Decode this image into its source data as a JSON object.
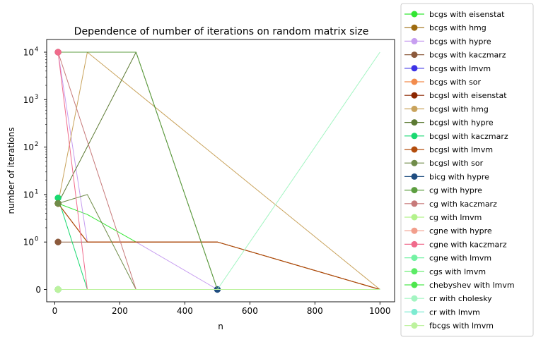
{
  "chart_data": {
    "type": "line",
    "title": "Dependence of number of iterations on random matrix size",
    "xlabel": "n",
    "ylabel": "number of iterations",
    "x_scale": "linear",
    "y_scale": "symlog",
    "xlim": [
      -25,
      1045
    ],
    "x_ticks": [
      0,
      200,
      400,
      600,
      800,
      1000
    ],
    "x_tick_labels": [
      "0",
      "200",
      "400",
      "600",
      "800",
      "1000"
    ],
    "y_ticks": [
      0,
      1,
      10,
      100,
      1000,
      10000
    ],
    "y_tick_labels": [
      "0",
      "10^0",
      "10^1",
      "10^2",
      "10^3",
      "10^4"
    ],
    "grid": false,
    "legend_position": "outside-right",
    "series": [
      {
        "name": "bcgs with eisenstat",
        "color": "#33e633",
        "points": [
          [
            10,
            6.5
          ],
          [
            100,
            3.8
          ],
          [
            250,
            1
          ],
          [
            500,
            1
          ],
          [
            1000,
            0
          ]
        ]
      },
      {
        "name": "bcgs with hmg",
        "color": "#9e6b0f",
        "points": [
          [
            10,
            6.5
          ],
          [
            100,
            1
          ],
          [
            250,
            1
          ],
          [
            500,
            1
          ],
          [
            1000,
            0
          ]
        ]
      },
      {
        "name": "bcgs with hypre",
        "color": "#c79ef0",
        "points": [
          [
            10,
            10000
          ],
          [
            100,
            1
          ],
          [
            250,
            1
          ],
          [
            500,
            0
          ],
          [
            1000,
            0
          ]
        ]
      },
      {
        "name": "bcgs with kaczmarz",
        "color": "#8c5a3c",
        "points": [
          [
            10,
            1
          ],
          [
            100,
            1
          ],
          [
            250,
            1
          ],
          [
            500,
            1
          ],
          [
            1000,
            0
          ]
        ]
      },
      {
        "name": "bcgs with lmvm",
        "color": "#3d33e6",
        "points": [
          [
            10,
            0
          ],
          [
            100,
            0
          ],
          [
            250,
            0
          ],
          [
            500,
            0
          ],
          [
            1000,
            0
          ]
        ]
      },
      {
        "name": "bcgs with sor",
        "color": "#f28c4d",
        "points": [
          [
            10,
            6.5
          ],
          [
            100,
            1
          ],
          [
            250,
            1
          ],
          [
            500,
            1
          ],
          [
            1000,
            0
          ]
        ]
      },
      {
        "name": "bcgsl with eisenstat",
        "color": "#8c2600",
        "points": [
          [
            10,
            6.5
          ],
          [
            100,
            1
          ],
          [
            250,
            1
          ],
          [
            500,
            1
          ],
          [
            1000,
            0
          ]
        ]
      },
      {
        "name": "bcgsl with hmg",
        "color": "#c9a35c",
        "points": [
          [
            10,
            6.5
          ],
          [
            100,
            10000
          ],
          [
            1000,
            0
          ]
        ]
      },
      {
        "name": "bcgsl with hypre",
        "color": "#5c7a33",
        "points": [
          [
            10,
            6.5
          ],
          [
            250,
            10000
          ],
          [
            500,
            0
          ],
          [
            1000,
            0
          ]
        ]
      },
      {
        "name": "bcgsl with kaczmarz",
        "color": "#19d970",
        "points": [
          [
            10,
            8.5
          ],
          [
            100,
            0
          ],
          [
            250,
            0
          ],
          [
            500,
            0
          ],
          [
            1000,
            0
          ]
        ]
      },
      {
        "name": "bcgsl with lmvm",
        "color": "#b34d0d",
        "points": [
          [
            10,
            6.5
          ],
          [
            100,
            1
          ],
          [
            250,
            1
          ],
          [
            500,
            1
          ],
          [
            1000,
            0
          ]
        ]
      },
      {
        "name": "bcgsl with sor",
        "color": "#708c4a",
        "points": [
          [
            10,
            6.5
          ],
          [
            100,
            10
          ],
          [
            250,
            0
          ],
          [
            500,
            0
          ],
          [
            1000,
            0
          ]
        ]
      },
      {
        "name": "bicg with hypre",
        "color": "#1f4d80",
        "points": [
          [
            500,
            0
          ]
        ]
      },
      {
        "name": "cg with hypre",
        "color": "#5c9e40",
        "points": [
          [
            10,
            10000
          ],
          [
            250,
            10000
          ],
          [
            500,
            0
          ],
          [
            1000,
            0
          ]
        ]
      },
      {
        "name": "cg with kaczmarz",
        "color": "#c77a7a",
        "points": [
          [
            10,
            10000
          ],
          [
            250,
            0
          ],
          [
            500,
            0
          ],
          [
            1000,
            0
          ]
        ]
      },
      {
        "name": "cg with lmvm",
        "color": "#b3f28c",
        "points": [
          [
            10,
            0
          ],
          [
            100,
            0
          ],
          [
            250,
            0
          ],
          [
            500,
            0
          ],
          [
            1000,
            0
          ]
        ]
      },
      {
        "name": "cgne with hypre",
        "color": "#f29e8c",
        "points": [
          [
            10,
            0
          ],
          [
            100,
            0
          ],
          [
            250,
            0
          ],
          [
            500,
            0
          ],
          [
            1000,
            0
          ]
        ]
      },
      {
        "name": "cgne with kaczmarz",
        "color": "#f06b8c",
        "points": [
          [
            10,
            10000
          ],
          [
            100,
            0
          ],
          [
            250,
            0
          ],
          [
            500,
            0
          ],
          [
            1000,
            0
          ]
        ]
      },
      {
        "name": "cgne with lmvm",
        "color": "#73f2a3",
        "points": [
          [
            10,
            0
          ],
          [
            100,
            0
          ],
          [
            250,
            0
          ],
          [
            500,
            0
          ],
          [
            1000,
            0
          ]
        ]
      },
      {
        "name": "cgs with lmvm",
        "color": "#5ceb66",
        "points": [
          [
            10,
            0
          ],
          [
            100,
            0
          ],
          [
            250,
            0
          ],
          [
            500,
            0
          ],
          [
            1000,
            0
          ]
        ]
      },
      {
        "name": "chebyshev with lmvm",
        "color": "#4de64d",
        "points": [
          [
            10,
            0
          ],
          [
            100,
            0
          ],
          [
            250,
            0
          ],
          [
            500,
            0
          ],
          [
            1000,
            0
          ]
        ]
      },
      {
        "name": "cr with cholesky",
        "color": "#a3f5c2",
        "points": [
          [
            10,
            0
          ],
          [
            100,
            0
          ],
          [
            250,
            0
          ],
          [
            500,
            0
          ],
          [
            1000,
            10000
          ]
        ]
      },
      {
        "name": "cr with lmvm",
        "color": "#7debd1",
        "points": [
          [
            10,
            0
          ],
          [
            100,
            0
          ],
          [
            250,
            0
          ],
          [
            500,
            0
          ],
          [
            1000,
            0
          ]
        ]
      },
      {
        "name": "fbcgs with lmvm",
        "color": "#bdf29e",
        "points": [
          [
            10,
            0
          ],
          [
            100,
            0
          ],
          [
            250,
            0
          ],
          [
            500,
            0
          ],
          [
            1000,
            0
          ]
        ]
      }
    ]
  }
}
